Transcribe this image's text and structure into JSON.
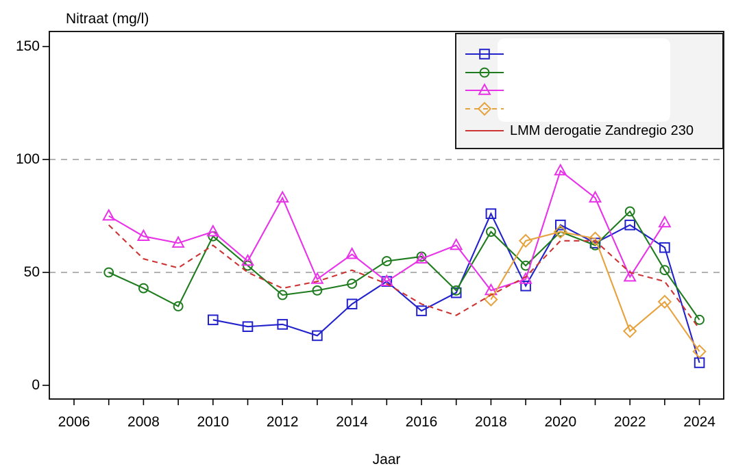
{
  "page": {
    "title": "Nitraat (mg/l)"
  },
  "chart_data": {
    "type": "line",
    "title": "Nitraat (mg/l)",
    "xlabel": "Jaar",
    "ylabel": "Nitraat (mg/l)",
    "xlim": [
      2005.3,
      2024.7
    ],
    "ylim": [
      0,
      155
    ],
    "x_ticks": [
      2006,
      2007,
      2008,
      2009,
      2010,
      2011,
      2012,
      2013,
      2014,
      2015,
      2016,
      2017,
      2018,
      2019,
      2020,
      2021,
      2022,
      2023,
      2024
    ],
    "x_tick_labels": [
      2006,
      2008,
      2010,
      2012,
      2014,
      2016,
      2018,
      2020,
      2022,
      2024
    ],
    "y_ticks": [
      0,
      50,
      100,
      150
    ],
    "gridlines_y": [
      50,
      100
    ],
    "grid_color": "#999999",
    "legend": {
      "position": "top-right",
      "background": "#f3f3f3",
      "entries": [
        {
          "label": "",
          "marker": "square",
          "color": "#2222cc",
          "line": "solid"
        },
        {
          "label": "",
          "marker": "circle",
          "color": "#1e7b1e",
          "line": "solid"
        },
        {
          "label": "",
          "marker": "triangle",
          "color": "#e832e8",
          "line": "solid"
        },
        {
          "label": "",
          "marker": "diamond",
          "color": "#e6a23c",
          "line": "dashed"
        },
        {
          "label": "LMM derogatie Zandregio 230",
          "marker": "none",
          "color": "#cc3333",
          "line": "solid"
        }
      ]
    },
    "series": [
      {
        "id": "blue-squares",
        "marker": "square",
        "color": "#2222cc",
        "line": "solid",
        "x": [
          2010,
          2011,
          2012,
          2013,
          2014,
          2015,
          2016,
          2017,
          2018,
          2019,
          2020,
          2021,
          2022,
          2023,
          2024
        ],
        "values": [
          29,
          26,
          27,
          22,
          36,
          46,
          33,
          41,
          76,
          44,
          71,
          63,
          71,
          61,
          10
        ]
      },
      {
        "id": "green-circles",
        "marker": "circle",
        "color": "#1e7b1e",
        "line": "solid",
        "x": [
          2007,
          2008,
          2009,
          2010,
          2011,
          2012,
          2013,
          2014,
          2015,
          2016,
          2017,
          2018,
          2019,
          2020,
          2021,
          2022,
          2023,
          2024
        ],
        "values": [
          50,
          43,
          35,
          66,
          53,
          40,
          42,
          45,
          55,
          57,
          42,
          68,
          53,
          68,
          62,
          77,
          51,
          29
        ]
      },
      {
        "id": "magenta-triangles",
        "marker": "triangle",
        "color": "#e832e8",
        "line": "solid",
        "x": [
          2007,
          2008,
          2009,
          2010,
          2011,
          2012,
          2013,
          2014,
          2015,
          2016,
          2017,
          2018,
          2019,
          2020,
          2021,
          2022,
          2023
        ],
        "values": [
          75,
          66,
          63,
          68,
          55,
          83,
          47,
          58,
          46,
          56,
          62,
          42,
          47,
          95,
          83,
          48,
          72
        ]
      },
      {
        "id": "orange-diamonds",
        "marker": "diamond",
        "color": "#e6a23c",
        "line": "solid",
        "x": [
          2018,
          2019,
          2020,
          2021,
          2022,
          2023,
          2024
        ],
        "values": [
          38,
          64,
          68,
          65,
          24,
          37,
          15
        ]
      },
      {
        "id": "lmm-derogatie-zandregio-230",
        "marker": "none",
        "color": "#cc3333",
        "line": "dashed",
        "x": [
          2007,
          2008,
          2009,
          2010,
          2011,
          2012,
          2013,
          2014,
          2015,
          2016,
          2017,
          2018,
          2019,
          2020,
          2021,
          2022,
          2023,
          2024
        ],
        "values": [
          71,
          56,
          52,
          62,
          50,
          43,
          46,
          51,
          45,
          36,
          31,
          40,
          48,
          64,
          64,
          50,
          46,
          25
        ]
      }
    ]
  }
}
